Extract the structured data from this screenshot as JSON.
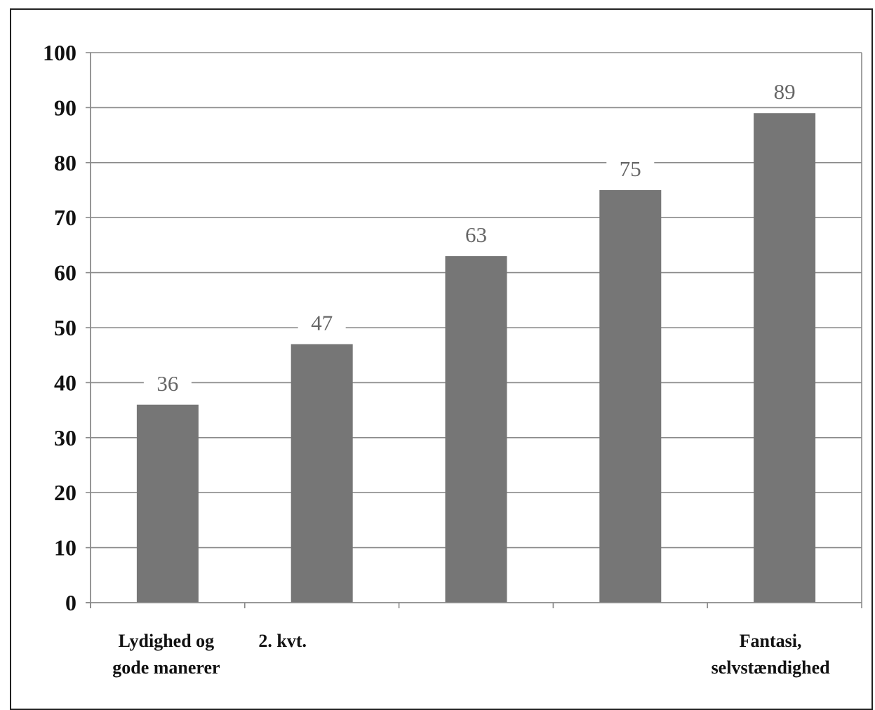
{
  "chart_data": {
    "type": "bar",
    "categories": [
      [
        "Lydighed og",
        "gode manerer"
      ],
      [
        "2. kvt."
      ],
      [],
      [],
      [
        "Fantasi,",
        "selvstændighed"
      ]
    ],
    "values": [
      36,
      47,
      63,
      75,
      89
    ],
    "data_labels": [
      "36",
      "47",
      "63",
      "75",
      "89"
    ],
    "yticks": [
      "0",
      "10",
      "20",
      "30",
      "40",
      "50",
      "60",
      "70",
      "80",
      "90",
      "100"
    ],
    "ylim": [
      0,
      100
    ],
    "ytick_step": 10,
    "grid": true,
    "bar_color": "#767676",
    "grid_color": "#8a8a8a",
    "axis_color": "#8a8a8a",
    "label_color": "#666666"
  }
}
